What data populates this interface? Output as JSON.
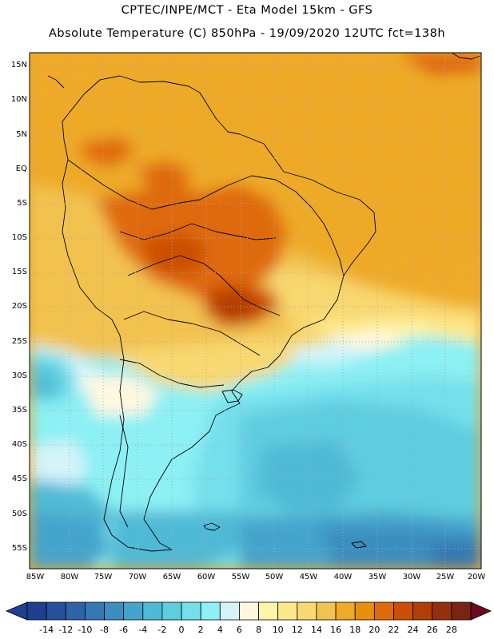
{
  "header": {
    "line1": "CPTEC/INPE/MCT -  Eta Model 15km - GFS",
    "line2": "Absolute Temperature (C) 850hPa - 19/09/2020 12UTC fct=138h"
  },
  "map": {
    "lat_labels": [
      "15N",
      "10N",
      "5N",
      "EQ",
      "5S",
      "10S",
      "15S",
      "20S",
      "25S",
      "30S",
      "35S",
      "40S",
      "45S",
      "50S",
      "55S"
    ],
    "lon_labels": [
      "85W",
      "80W",
      "75W",
      "70W",
      "65W",
      "60W",
      "55W",
      "50W",
      "45W",
      "40W",
      "35W",
      "30W",
      "25W",
      "20W"
    ]
  },
  "colorbar": {
    "levels": [
      "-14",
      "-12",
      "-10",
      "-8",
      "-6",
      "-4",
      "-2",
      "0",
      "2",
      "4",
      "6",
      "8",
      "10",
      "12",
      "14",
      "16",
      "18",
      "20",
      "22",
      "24",
      "26",
      "28"
    ],
    "colors": [
      "#1f3f8f",
      "#26509c",
      "#2d63a8",
      "#3478b4",
      "#3b8ec0",
      "#44a4cc",
      "#4fbad6",
      "#5ecde0",
      "#74e0ec",
      "#8cf0f4",
      "#d4f4fa",
      "#fff8e0",
      "#fff4a8",
      "#fde98a",
      "#f8d870",
      "#f2c250",
      "#eeaa28",
      "#e7900e",
      "#df6a0a",
      "#cc4f06",
      "#b23d06",
      "#96300a",
      "#7a2414"
    ],
    "over_color": "#6a0a1e"
  }
}
